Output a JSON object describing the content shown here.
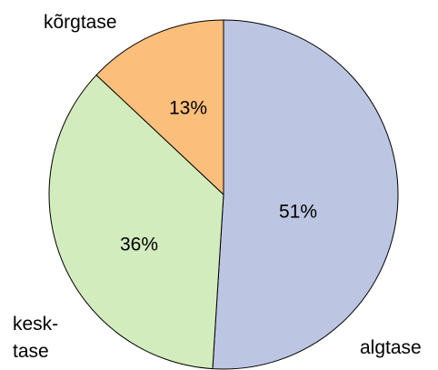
{
  "chart_data": {
    "type": "pie",
    "categories": [
      "algtase",
      "kesk-\ntase",
      "kõrgtase"
    ],
    "values": [
      51,
      36,
      13
    ],
    "value_labels": [
      "51%",
      "36%",
      "13%"
    ],
    "colors": [
      "#bcc6e2",
      "#d3ecbd",
      "#fcbf7b"
    ]
  }
}
